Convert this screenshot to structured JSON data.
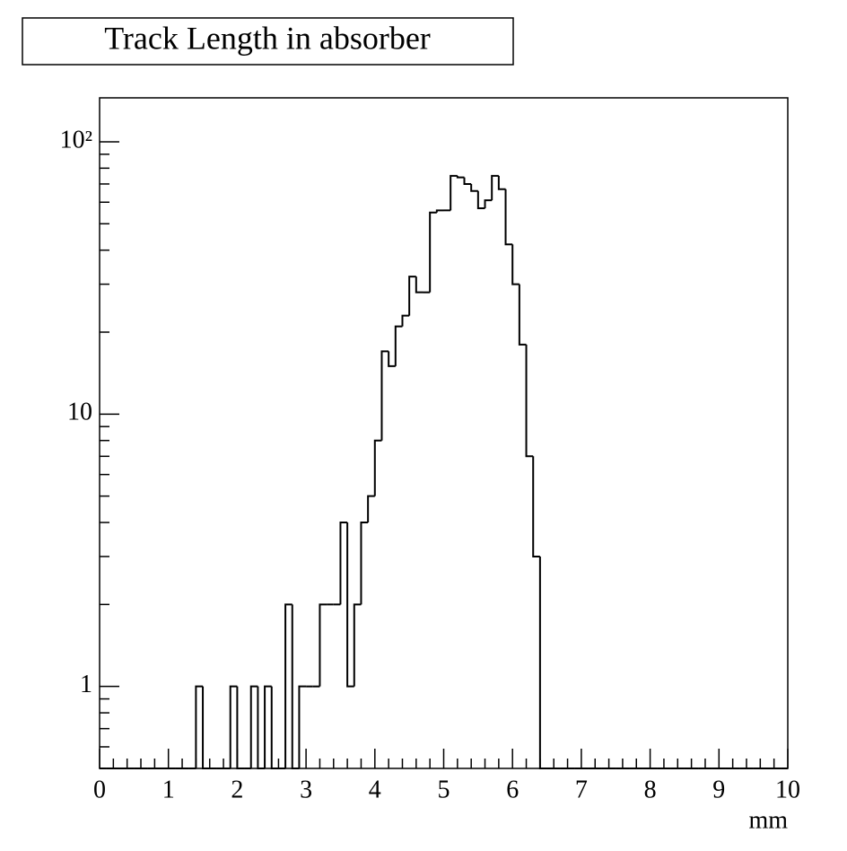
{
  "chart_data": {
    "type": "histogram",
    "title": "Track Length in absorber",
    "x_label": "mm",
    "bins": [
      0,
      0.1,
      0.2,
      0.3,
      0.4,
      0.5,
      0.6,
      0.7,
      0.8,
      0.9,
      1,
      1.1,
      1.2,
      1.3,
      1.4,
      1.5,
      1.6,
      1.7,
      1.8,
      1.9,
      2,
      2.1,
      2.2,
      2.3,
      2.4,
      2.5,
      2.6,
      2.7,
      2.8,
      2.9,
      3,
      3.1,
      3.2,
      3.3,
      3.4,
      3.5,
      3.6,
      3.7,
      3.8,
      3.9,
      4,
      4.1,
      4.2,
      4.3,
      4.4,
      4.5,
      4.6,
      4.7,
      4.8,
      4.9,
      5,
      5.1,
      5.2,
      5.3,
      5.4,
      5.5,
      5.6,
      5.7,
      5.8,
      5.9,
      6,
      6.1,
      6.2,
      6.3,
      6.4,
      6.5,
      6.6,
      6.7,
      6.8,
      6.9,
      7,
      7.1,
      7.2,
      7.3,
      7.4,
      7.5,
      7.6,
      7.7,
      7.8,
      7.9,
      8,
      8.1,
      8.2,
      8.3,
      8.4,
      8.5,
      8.6,
      8.7,
      8.8,
      8.9,
      9,
      9.1,
      9.2,
      9.3,
      9.4,
      9.5,
      9.6,
      9.7,
      9.8,
      9.9,
      10
    ],
    "values": [
      0,
      0,
      0,
      0,
      0,
      0,
      0,
      0,
      0,
      0,
      0,
      0,
      0,
      0,
      1,
      0,
      0,
      0,
      0,
      1,
      0,
      0,
      1,
      0,
      1,
      0,
      0,
      2,
      0,
      1,
      1,
      1,
      2,
      2,
      2,
      4,
      1,
      2,
      4,
      5,
      8,
      17,
      15,
      21,
      23,
      32,
      28,
      28,
      55,
      56,
      56,
      75,
      74,
      70,
      66,
      57,
      61,
      75,
      67,
      42,
      30,
      18,
      7,
      3,
      0,
      0,
      0,
      0,
      0,
      0,
      0,
      0,
      0,
      0,
      0,
      0,
      0,
      0,
      0,
      0,
      0,
      0,
      0,
      0,
      0,
      0,
      0,
      0,
      0,
      0,
      0,
      0,
      0,
      0,
      0,
      0,
      0,
      0,
      0,
      0
    ],
    "color": "#000000",
    "xlim": [
      0,
      10
    ],
    "xticks": [
      0,
      1,
      2,
      3,
      4,
      5,
      6,
      7,
      8,
      9,
      10
    ],
    "ylim": [
      0.5,
      145
    ],
    "yticks": [
      1,
      10,
      {
        "value": 100,
        "label": "10²"
      }
    ],
    "log_y": true
  }
}
